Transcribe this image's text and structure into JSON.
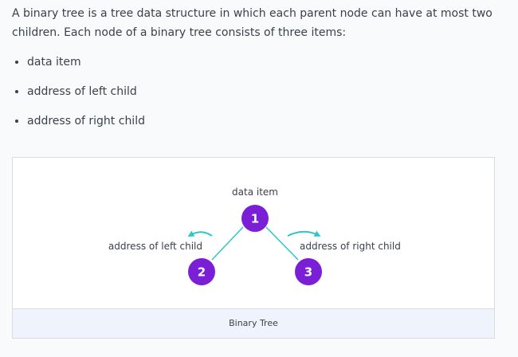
{
  "intro": "A binary tree is a tree data structure in which each parent node can have at most two children. Each node of a binary tree consists of three items:",
  "bullets": [
    "data item",
    "address of left child",
    "address of right child"
  ],
  "figure": {
    "labels": {
      "data_item": "data item",
      "left_child": "address of left child",
      "right_child": "address of right child"
    },
    "nodes": [
      "1",
      "2",
      "3"
    ],
    "caption": "Binary Tree"
  },
  "colors": {
    "node": "#7a1fd6",
    "edge": "#2bc6c8",
    "text": "#3b3f4c",
    "caption_bg": "#eef3fc"
  }
}
